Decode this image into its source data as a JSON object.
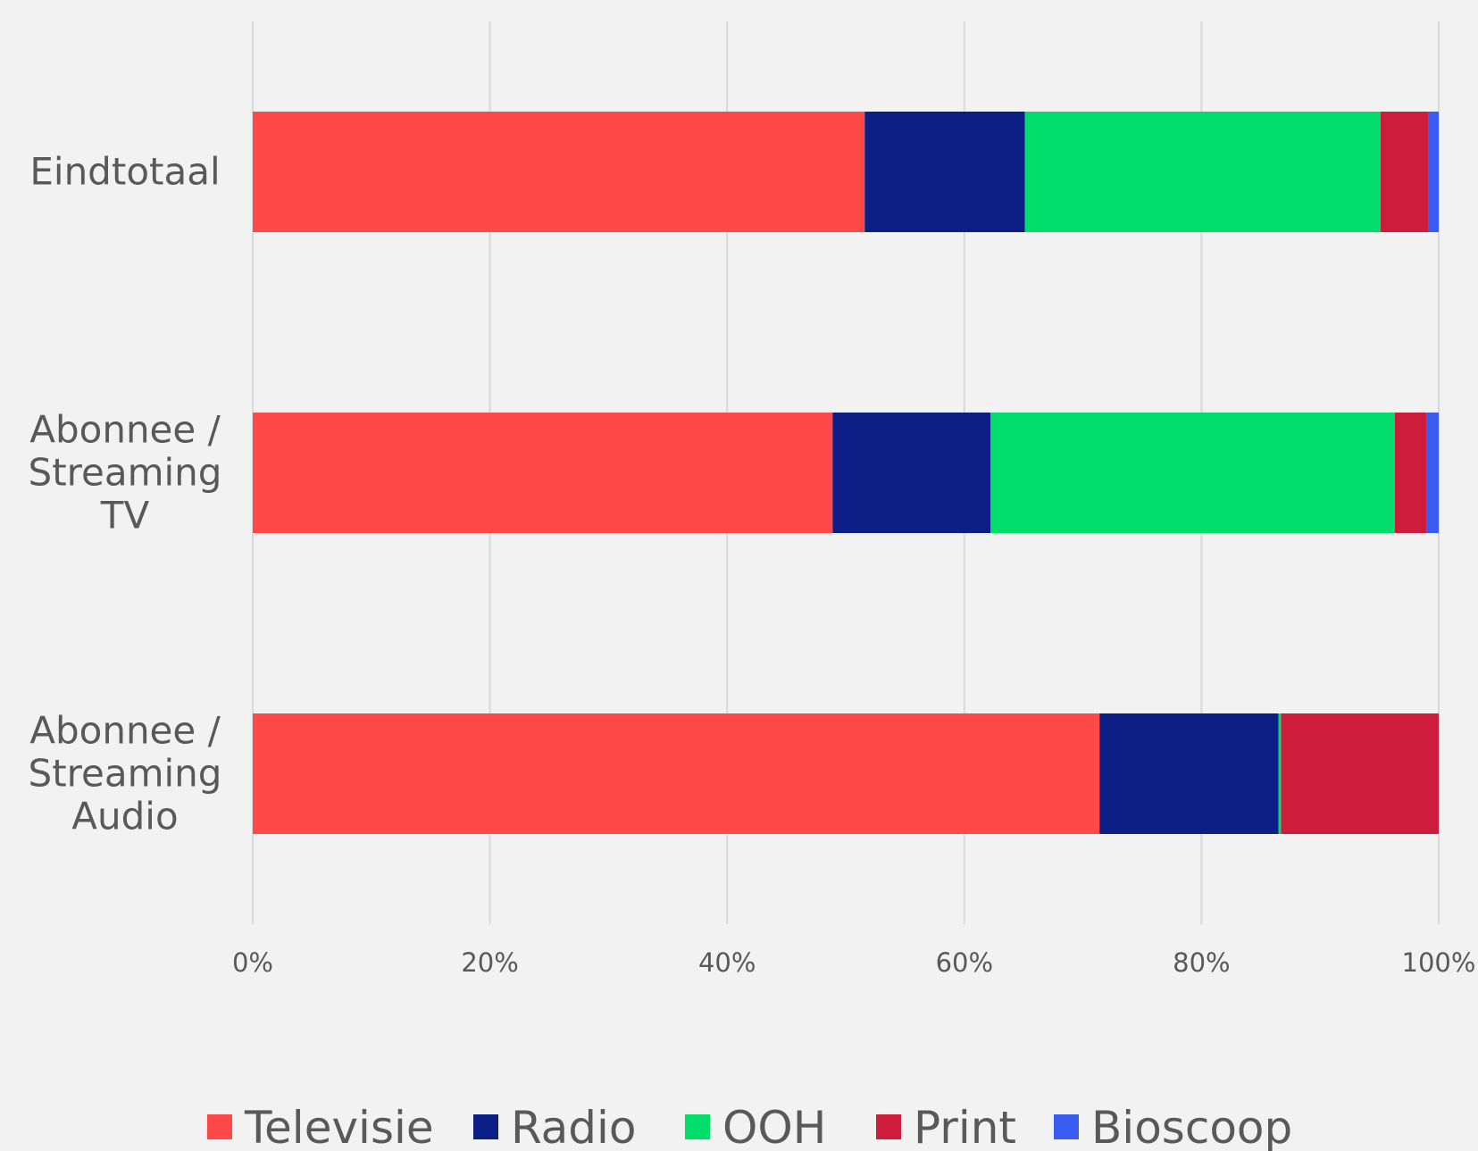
{
  "chart_data": {
    "type": "bar",
    "orientation": "horizontal",
    "stacked": "percent",
    "categories": [
      [
        "Eindtotaal"
      ],
      [
        "Abonnee /",
        "Streaming",
        "TV"
      ],
      [
        "Abonnee /",
        "Streaming",
        "Audio"
      ]
    ],
    "series": [
      {
        "name": "Televisie",
        "color": "#ff4848",
        "values": [
          51.6,
          48.9,
          71.4
        ]
      },
      {
        "name": "Radio",
        "color": "#0c1f87",
        "values": [
          13.5,
          13.3,
          15.1
        ]
      },
      {
        "name": "OOH",
        "color": "#00dd6b",
        "values": [
          30.0,
          34.1,
          0.2
        ]
      },
      {
        "name": "Print",
        "color": "#cd1c3c",
        "values": [
          4.0,
          2.7,
          13.3
        ]
      },
      {
        "name": "Bioscoop",
        "color": "#3a5bef",
        "values": [
          0.9,
          1.0,
          0.0
        ]
      }
    ],
    "x_ticks": [
      "0%",
      "20%",
      "40%",
      "60%",
      "80%",
      "100%"
    ],
    "xlim": [
      0,
      100
    ],
    "grid": true,
    "legend_position": "bottom"
  }
}
